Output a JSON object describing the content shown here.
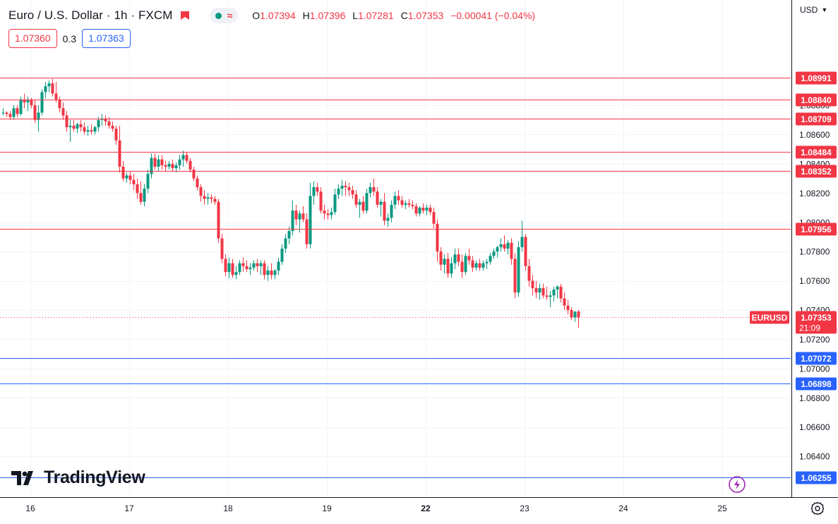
{
  "header": {
    "symbol": "Euro / U.S. Dollar · 1h · FXCM",
    "open_label": "O",
    "open": "1.07394",
    "high_label": "H",
    "high": "1.07396",
    "low_label": "L",
    "low": "1.07281",
    "close_label": "C",
    "close": "1.07353",
    "change": "−0.00041 (−0.04%)"
  },
  "trade": {
    "sell": "1.07360",
    "spread": "0.3",
    "buy": "1.07363"
  },
  "currency": "USD",
  "logo": "TradingView",
  "icons": [
    "flag-icon",
    "wave-icon",
    "tradingview-logo-icon",
    "lightning-icon",
    "settings-icon",
    "chevron-down-icon"
  ],
  "colors": {
    "up": "#089981",
    "down": "#f23645",
    "resistance": "#f23645",
    "support": "#2962ff",
    "grid": "#f0f3fa",
    "axis_border": "#131722"
  },
  "chart_data": {
    "type": "candlestick",
    "title": "",
    "ylim": [
      1.0614,
      1.0923
    ],
    "grid": true,
    "x_ticks": [
      {
        "label": "16",
        "index": 1,
        "bold": false
      },
      {
        "label": "17",
        "index": 29,
        "bold": false
      },
      {
        "label": "18",
        "index": 57,
        "bold": false
      },
      {
        "label": "19",
        "index": 85,
        "bold": false
      },
      {
        "label": "22",
        "index": 113,
        "bold": true
      },
      {
        "label": "23",
        "index": 141,
        "bold": false
      },
      {
        "label": "24",
        "index": 169,
        "bold": false
      },
      {
        "label": "25",
        "index": 197,
        "bold": false
      }
    ],
    "y_ticks": [
      "1.08800",
      "1.08600",
      "1.08400",
      "1.08200",
      "1.08000",
      "1.07800",
      "1.07600",
      "1.07400",
      "1.07200",
      "1.07000",
      "1.06800",
      "1.06600",
      "1.06400"
    ],
    "horizontal_levels": [
      {
        "value": "1.08991",
        "kind": "resistance"
      },
      {
        "value": "1.08840",
        "kind": "resistance"
      },
      {
        "value": "1.08709",
        "kind": "resistance"
      },
      {
        "value": "1.08484",
        "kind": "resistance"
      },
      {
        "value": "1.08352",
        "kind": "resistance"
      },
      {
        "value": "1.07956",
        "kind": "resistance"
      },
      {
        "value": "1.07072",
        "kind": "support"
      },
      {
        "value": "1.06898",
        "kind": "support"
      },
      {
        "value": "1.06255",
        "kind": "support"
      }
    ],
    "last_price": {
      "symbol": "EURUSD",
      "price": "1.07353",
      "countdown": "21:09"
    },
    "candles": [
      [
        1.0875,
        1.0878,
        1.0873,
        1.0875
      ],
      [
        1.0875,
        1.0876,
        1.0872,
        1.0874
      ],
      [
        1.0874,
        1.0876,
        1.087,
        1.0872
      ],
      [
        1.0872,
        1.088,
        1.087,
        1.0878
      ],
      [
        1.0878,
        1.088,
        1.0872,
        1.0874
      ],
      [
        1.0874,
        1.0886,
        1.0873,
        1.0884
      ],
      [
        1.0884,
        1.0888,
        1.0878,
        1.0882
      ],
      [
        1.0882,
        1.0886,
        1.0876,
        1.0884
      ],
      [
        1.0884,
        1.0885,
        1.0878,
        1.088
      ],
      [
        1.088,
        1.0884,
        1.0868,
        1.087
      ],
      [
        1.087,
        1.088,
        1.0862,
        1.0875
      ],
      [
        1.0875,
        1.0891,
        1.0873,
        1.0889
      ],
      [
        1.0889,
        1.0896,
        1.0885,
        1.0893
      ],
      [
        1.0893,
        1.0897,
        1.0889,
        1.0895
      ],
      [
        1.0895,
        1.0898,
        1.0886,
        1.0888
      ],
      [
        1.0888,
        1.0896,
        1.0882,
        1.0884
      ],
      [
        1.0884,
        1.0886,
        1.0875,
        1.0878
      ],
      [
        1.0878,
        1.0882,
        1.087,
        1.0873
      ],
      [
        1.0873,
        1.0876,
        1.0862,
        1.0865
      ],
      [
        1.0865,
        1.087,
        1.0855,
        1.0866
      ],
      [
        1.0866,
        1.087,
        1.0862,
        1.0864
      ],
      [
        1.0864,
        1.0868,
        1.0861,
        1.0867
      ],
      [
        1.0867,
        1.087,
        1.0862,
        1.0865
      ],
      [
        1.0865,
        1.0868,
        1.086,
        1.0862
      ],
      [
        1.0862,
        1.0866,
        1.0859,
        1.0863
      ],
      [
        1.0863,
        1.0867,
        1.086,
        1.0862
      ],
      [
        1.0862,
        1.0866,
        1.086,
        1.0865
      ],
      [
        1.0865,
        1.0872,
        1.0862,
        1.087
      ],
      [
        1.087,
        1.0874,
        1.0866,
        1.0871
      ],
      [
        1.0871,
        1.0873,
        1.0866,
        1.0869
      ],
      [
        1.0869,
        1.0872,
        1.0864,
        1.0866
      ],
      [
        1.0866,
        1.0869,
        1.0862,
        1.0864
      ],
      [
        1.0864,
        1.0866,
        1.0853,
        1.0856
      ],
      [
        1.0856,
        1.0866,
        1.0834,
        1.0838
      ],
      [
        1.0838,
        1.0842,
        1.0828,
        1.083
      ],
      [
        1.083,
        1.0834,
        1.0827,
        1.0832
      ],
      [
        1.0832,
        1.0835,
        1.0826,
        1.0829
      ],
      [
        1.0829,
        1.0833,
        1.0822,
        1.0826
      ],
      [
        1.0826,
        1.083,
        1.0816,
        1.082
      ],
      [
        1.082,
        1.0828,
        1.0812,
        1.0814
      ],
      [
        1.0814,
        1.0826,
        1.0811,
        1.0823
      ],
      [
        1.0823,
        1.0836,
        1.082,
        1.0833
      ],
      [
        1.0833,
        1.0847,
        1.083,
        1.0844
      ],
      [
        1.0844,
        1.0847,
        1.0836,
        1.0838
      ],
      [
        1.0838,
        1.0846,
        1.0835,
        1.0843
      ],
      [
        1.0843,
        1.0846,
        1.0836,
        1.0839
      ],
      [
        1.0839,
        1.0842,
        1.0835,
        1.0838
      ],
      [
        1.0838,
        1.0842,
        1.0836,
        1.084
      ],
      [
        1.084,
        1.0843,
        1.0835,
        1.0837
      ],
      [
        1.0837,
        1.0841,
        1.0834,
        1.0839
      ],
      [
        1.0839,
        1.0846,
        1.0836,
        1.0843
      ],
      [
        1.0843,
        1.0849,
        1.0838,
        1.0846
      ],
      [
        1.0846,
        1.0848,
        1.084,
        1.0842
      ],
      [
        1.0842,
        1.0844,
        1.0834,
        1.0836
      ],
      [
        1.0836,
        1.0838,
        1.0828,
        1.083
      ],
      [
        1.083,
        1.0832,
        1.0822,
        1.0824
      ],
      [
        1.0824,
        1.0826,
        1.0814,
        1.0818
      ],
      [
        1.0818,
        1.0822,
        1.0812,
        1.0816
      ],
      [
        1.0816,
        1.082,
        1.0812,
        1.0817
      ],
      [
        1.0817,
        1.0819,
        1.0813,
        1.0816
      ],
      [
        1.0816,
        1.0818,
        1.0812,
        1.0814
      ],
      [
        1.0814,
        1.0816,
        1.0786,
        1.0789
      ],
      [
        1.0789,
        1.0792,
        1.0772,
        1.0775
      ],
      [
        1.0775,
        1.0778,
        1.0763,
        1.0766
      ],
      [
        1.0766,
        1.0776,
        1.0762,
        1.0772
      ],
      [
        1.0772,
        1.0775,
        1.0762,
        1.0764
      ],
      [
        1.0764,
        1.077,
        1.0761,
        1.0766
      ],
      [
        1.0766,
        1.0774,
        1.0764,
        1.0772
      ],
      [
        1.0772,
        1.0776,
        1.0766,
        1.077
      ],
      [
        1.077,
        1.0774,
        1.0766,
        1.0768
      ],
      [
        1.0768,
        1.0772,
        1.0764,
        1.0769
      ],
      [
        1.0769,
        1.0774,
        1.0767,
        1.0772
      ],
      [
        1.0772,
        1.0775,
        1.0766,
        1.077
      ],
      [
        1.077,
        1.0774,
        1.0764,
        1.0772
      ],
      [
        1.0772,
        1.0774,
        1.0761,
        1.0764
      ],
      [
        1.0764,
        1.077,
        1.076,
        1.0767
      ],
      [
        1.0767,
        1.0772,
        1.0761,
        1.0764
      ],
      [
        1.0764,
        1.0768,
        1.0761,
        1.0767
      ],
      [
        1.0767,
        1.0776,
        1.0764,
        1.0773
      ],
      [
        1.0773,
        1.0785,
        1.0771,
        1.0782
      ],
      [
        1.0782,
        1.0792,
        1.0779,
        1.0789
      ],
      [
        1.0789,
        1.0797,
        1.0785,
        1.0794
      ],
      [
        1.0794,
        1.0815,
        1.0791,
        1.0808
      ],
      [
        1.0808,
        1.0812,
        1.0798,
        1.0802
      ],
      [
        1.0802,
        1.0808,
        1.0793,
        1.0806
      ],
      [
        1.0806,
        1.0811,
        1.08,
        1.0802
      ],
      [
        1.0802,
        1.0806,
        1.0782,
        1.0785
      ],
      [
        1.0785,
        1.0827,
        1.0782,
        1.0818
      ],
      [
        1.0818,
        1.0828,
        1.0812,
        1.0824
      ],
      [
        1.0824,
        1.0827,
        1.0818,
        1.0821
      ],
      [
        1.0821,
        1.0824,
        1.0806,
        1.0808
      ],
      [
        1.0808,
        1.0812,
        1.0802,
        1.0806
      ],
      [
        1.0806,
        1.0809,
        1.0802,
        1.0805
      ],
      [
        1.0805,
        1.081,
        1.0802,
        1.0807
      ],
      [
        1.0807,
        1.0823,
        1.0805,
        1.0819
      ],
      [
        1.0819,
        1.0826,
        1.0816,
        1.0823
      ],
      [
        1.0823,
        1.0829,
        1.0818,
        1.0825
      ],
      [
        1.0825,
        1.0828,
        1.0818,
        1.0824
      ],
      [
        1.0824,
        1.0827,
        1.0818,
        1.0822
      ],
      [
        1.0822,
        1.0825,
        1.0816,
        1.0819
      ],
      [
        1.0819,
        1.0822,
        1.081,
        1.0812
      ],
      [
        1.0812,
        1.0816,
        1.0803,
        1.0814
      ],
      [
        1.0814,
        1.0818,
        1.0806,
        1.0808
      ],
      [
        1.0808,
        1.0823,
        1.0806,
        1.082
      ],
      [
        1.082,
        1.0827,
        1.0817,
        1.0824
      ],
      [
        1.0824,
        1.083,
        1.0818,
        1.0821
      ],
      [
        1.0821,
        1.0824,
        1.081,
        1.0812
      ],
      [
        1.0812,
        1.0816,
        1.0804,
        1.0814
      ],
      [
        1.0814,
        1.082,
        1.0798,
        1.0801
      ],
      [
        1.0801,
        1.0806,
        1.0797,
        1.0803
      ],
      [
        1.0803,
        1.0815,
        1.08,
        1.0812
      ],
      [
        1.0812,
        1.0821,
        1.0809,
        1.0818
      ],
      [
        1.0818,
        1.0822,
        1.0812,
        1.0815
      ],
      [
        1.0815,
        1.0818,
        1.081,
        1.0812
      ],
      [
        1.0812,
        1.0815,
        1.0809,
        1.0813
      ],
      [
        1.0813,
        1.0816,
        1.081,
        1.0812
      ],
      [
        1.0812,
        1.0815,
        1.0809,
        1.0811
      ],
      [
        1.0811,
        1.0813,
        1.0804,
        1.0806
      ],
      [
        1.0806,
        1.0811,
        1.0804,
        1.081
      ],
      [
        1.081,
        1.0813,
        1.0806,
        1.0808
      ],
      [
        1.0808,
        1.0812,
        1.0805,
        1.081
      ],
      [
        1.081,
        1.0812,
        1.0805,
        1.0807
      ],
      [
        1.0807,
        1.081,
        1.0796,
        1.0799
      ],
      [
        1.0799,
        1.0802,
        1.0773,
        1.078
      ],
      [
        1.078,
        1.0783,
        1.0767,
        1.0771
      ],
      [
        1.0771,
        1.0778,
        1.0765,
        1.0775
      ],
      [
        1.0775,
        1.0779,
        1.0762,
        1.0765
      ],
      [
        1.0765,
        1.0776,
        1.0762,
        1.0772
      ],
      [
        1.0772,
        1.0782,
        1.0768,
        1.0778
      ],
      [
        1.0778,
        1.0782,
        1.077,
        1.0773
      ],
      [
        1.0773,
        1.0778,
        1.0762,
        1.0766
      ],
      [
        1.0766,
        1.0779,
        1.0764,
        1.0777
      ],
      [
        1.0777,
        1.0782,
        1.0771,
        1.0774
      ],
      [
        1.0774,
        1.0777,
        1.0766,
        1.0769
      ],
      [
        1.0769,
        1.0774,
        1.0767,
        1.0772
      ],
      [
        1.0772,
        1.0775,
        1.0767,
        1.0769
      ],
      [
        1.0769,
        1.0774,
        1.0767,
        1.0772
      ],
      [
        1.0772,
        1.0775,
        1.0768,
        1.0773
      ],
      [
        1.0773,
        1.0779,
        1.0771,
        1.0777
      ],
      [
        1.0777,
        1.0782,
        1.0775,
        1.078
      ],
      [
        1.078,
        1.0784,
        1.0776,
        1.0783
      ],
      [
        1.0783,
        1.0789,
        1.078,
        1.0785
      ],
      [
        1.0785,
        1.0791,
        1.078,
        1.0782
      ],
      [
        1.0782,
        1.0788,
        1.0778,
        1.0786
      ],
      [
        1.0786,
        1.0789,
        1.0771,
        1.0775
      ],
      [
        1.0775,
        1.0779,
        1.0748,
        1.0752
      ],
      [
        1.0752,
        1.0787,
        1.0749,
        1.0783
      ],
      [
        1.0783,
        1.0801,
        1.078,
        1.079
      ],
      [
        1.079,
        1.0792,
        1.0767,
        1.077
      ],
      [
        1.077,
        1.0775,
        1.0756,
        1.076
      ],
      [
        1.076,
        1.0764,
        1.075,
        1.0755
      ],
      [
        1.0755,
        1.076,
        1.0748,
        1.0752
      ],
      [
        1.0752,
        1.0758,
        1.0747,
        1.0755
      ],
      [
        1.0755,
        1.0758,
        1.0748,
        1.075
      ],
      [
        1.075,
        1.0756,
        1.0747,
        1.0749
      ],
      [
        1.0749,
        1.0753,
        1.0742,
        1.075
      ],
      [
        1.075,
        1.0756,
        1.0746,
        1.0754
      ],
      [
        1.0754,
        1.0757,
        1.0748,
        1.0756
      ],
      [
        1.0756,
        1.0758,
        1.0745,
        1.0748
      ],
      [
        1.0748,
        1.0752,
        1.074,
        1.0743
      ],
      [
        1.0743,
        1.0747,
        1.0737,
        1.074
      ],
      [
        1.074,
        1.0742,
        1.0733,
        1.0735
      ],
      [
        1.0735,
        1.0739,
        1.0732,
        1.0739
      ],
      [
        1.0739,
        1.074,
        1.0728,
        1.0735
      ]
    ]
  }
}
